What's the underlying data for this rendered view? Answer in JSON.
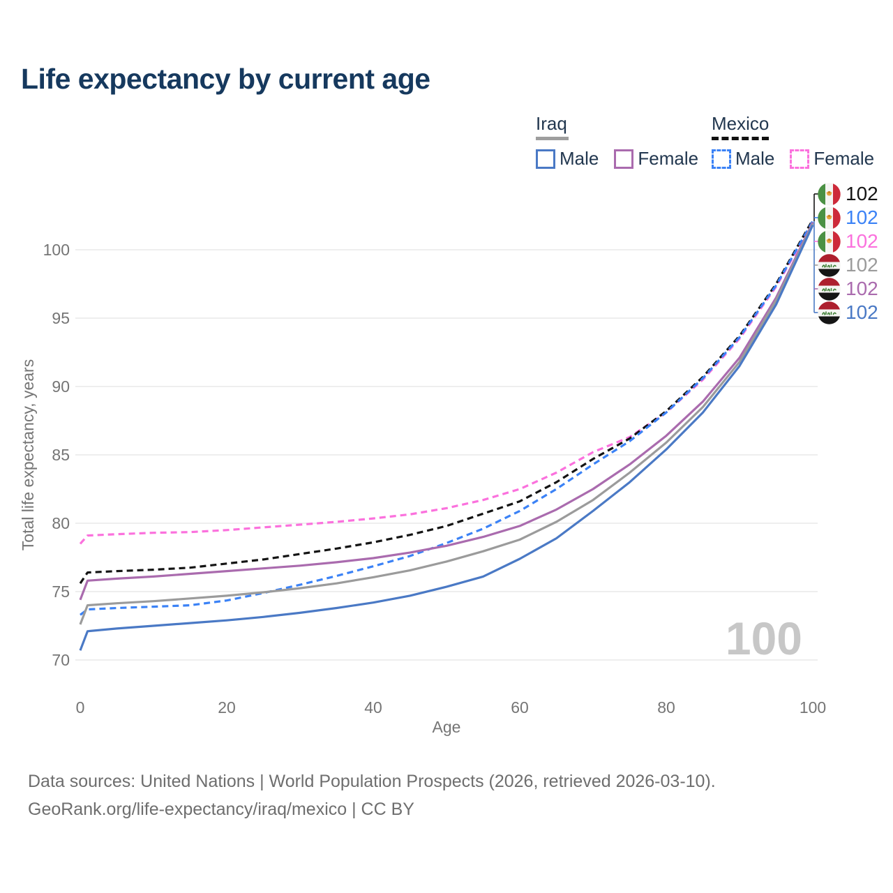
{
  "header": {
    "title": "Life expectancy by current age"
  },
  "legend": {
    "groups": [
      {
        "name": "Iraq",
        "style": "solid",
        "items": [
          {
            "label": "Male",
            "color": "#4a79c5"
          },
          {
            "label": "Female",
            "color": "#aa6bae"
          }
        ]
      },
      {
        "name": "Mexico",
        "style": "dashed",
        "items": [
          {
            "label": "Male",
            "color": "#3b82f6"
          },
          {
            "label": "Female",
            "color": "#fb71dd"
          }
        ]
      }
    ]
  },
  "chart_data": {
    "type": "line",
    "title": "Life expectancy by current age",
    "xlabel": "Age",
    "ylabel": "Total life expectancy, years",
    "xlim": [
      0,
      100
    ],
    "ylim": [
      70,
      102.5
    ],
    "xticks": [
      0,
      20,
      40,
      60,
      80,
      100
    ],
    "yticks": [
      70,
      75,
      80,
      85,
      90,
      95,
      100
    ],
    "grid": "horizontal",
    "legend_position": "top-right",
    "watermark": "100",
    "x": [
      0,
      1,
      5,
      10,
      15,
      20,
      25,
      30,
      35,
      40,
      45,
      50,
      55,
      60,
      65,
      70,
      75,
      80,
      85,
      90,
      95,
      100
    ],
    "series": [
      {
        "name": "Mexico Female",
        "country": "Mexico",
        "sex": "Female",
        "dash": true,
        "color": "#fb71dd",
        "values": [
          78.5,
          79.1,
          79.2,
          79.3,
          79.35,
          79.5,
          79.7,
          79.9,
          80.1,
          80.35,
          80.65,
          81.1,
          81.7,
          82.5,
          83.7,
          85.2,
          86.3,
          88.1,
          90.5,
          93.5,
          97.3,
          102.0
        ]
      },
      {
        "name": "Mexico",
        "country": "Mexico",
        "sex": "Both",
        "dash": true,
        "color": "#141414",
        "values": [
          75.6,
          76.4,
          76.5,
          76.6,
          76.75,
          77.05,
          77.35,
          77.75,
          78.15,
          78.6,
          79.15,
          79.8,
          80.7,
          81.6,
          83.0,
          84.7,
          86.2,
          88.2,
          90.7,
          93.7,
          97.5,
          102.2
        ]
      },
      {
        "name": "Mexico Male",
        "country": "Mexico",
        "sex": "Male",
        "dash": true,
        "color": "#3b82f6",
        "values": [
          73.3,
          73.7,
          73.8,
          73.9,
          74.0,
          74.35,
          74.9,
          75.5,
          76.15,
          76.85,
          77.6,
          78.55,
          79.6,
          80.9,
          82.5,
          84.3,
          86.0,
          88.1,
          90.6,
          93.6,
          97.4,
          102.1
        ]
      },
      {
        "name": "Iraq Female",
        "country": "Iraq",
        "sex": "Female",
        "dash": false,
        "color": "#aa6bae",
        "values": [
          74.4,
          75.8,
          75.95,
          76.1,
          76.3,
          76.5,
          76.7,
          76.9,
          77.15,
          77.45,
          77.85,
          78.35,
          79.0,
          79.8,
          81.0,
          82.5,
          84.3,
          86.4,
          88.9,
          92.1,
          96.5,
          102.0
        ]
      },
      {
        "name": "Iraq",
        "country": "Iraq",
        "sex": "Both",
        "dash": false,
        "color": "#9b9b9b",
        "values": [
          72.6,
          74.0,
          74.15,
          74.3,
          74.5,
          74.7,
          74.95,
          75.25,
          75.6,
          76.05,
          76.55,
          77.2,
          77.95,
          78.8,
          80.1,
          81.7,
          83.7,
          85.9,
          88.5,
          91.8,
          96.3,
          101.9
        ]
      },
      {
        "name": "Iraq Male",
        "country": "Iraq",
        "sex": "Male",
        "dash": false,
        "color": "#4a79c5",
        "values": [
          70.7,
          72.1,
          72.3,
          72.5,
          72.7,
          72.9,
          73.15,
          73.45,
          73.8,
          74.2,
          74.7,
          75.35,
          76.1,
          77.4,
          78.9,
          80.9,
          83.0,
          85.4,
          88.1,
          91.5,
          96.0,
          101.8
        ]
      }
    ],
    "end_labels": [
      {
        "flag": "mexico",
        "value": "102",
        "color": "#141414"
      },
      {
        "flag": "mexico",
        "value": "102",
        "color": "#3b82f6"
      },
      {
        "flag": "mexico",
        "value": "102",
        "color": "#fb71dd"
      },
      {
        "flag": "iraq",
        "value": "102",
        "color": "#9b9b9b"
      },
      {
        "flag": "iraq",
        "value": "102",
        "color": "#aa6bae"
      },
      {
        "flag": "iraq",
        "value": "102",
        "color": "#4a79c5"
      }
    ]
  },
  "footer": {
    "line1": "Data sources: United Nations | World Population Prospects (2026, retrieved 2026-03-10).",
    "line2": "GeoRank.org/life-expectancy/iraq/mexico | CC BY"
  }
}
